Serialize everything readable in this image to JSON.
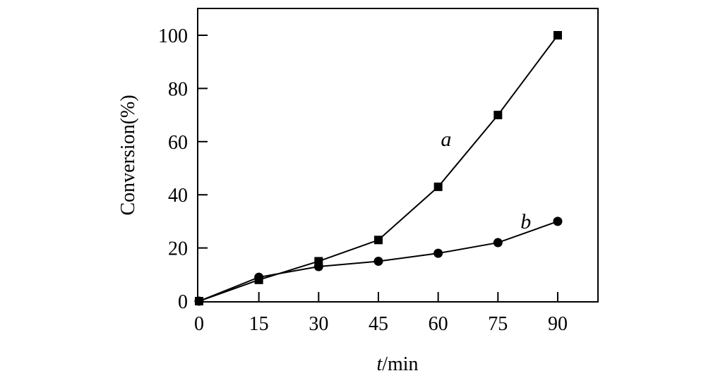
{
  "chart_data": {
    "type": "line",
    "title": "",
    "xlabel_italic": "t",
    "xlabel_rest": "/min",
    "ylabel": "Conversion(%)",
    "xlim": [
      0,
      100
    ],
    "ylim": [
      0,
      110
    ],
    "xticks": [
      0,
      15,
      30,
      45,
      60,
      75,
      90
    ],
    "yticks": [
      0,
      20,
      40,
      60,
      80,
      100
    ],
    "grid": false,
    "x": [
      0,
      15,
      30,
      45,
      60,
      75,
      90
    ],
    "series": [
      {
        "name": "a",
        "marker": "square",
        "values": [
          0,
          8,
          15,
          23,
          43,
          70,
          100
        ],
        "label_at": [
          62,
          61
        ]
      },
      {
        "name": "b",
        "marker": "circle",
        "values": [
          0,
          9,
          13,
          15,
          18,
          22,
          30
        ],
        "label_at": [
          82,
          30
        ]
      }
    ],
    "color": "#000000"
  }
}
